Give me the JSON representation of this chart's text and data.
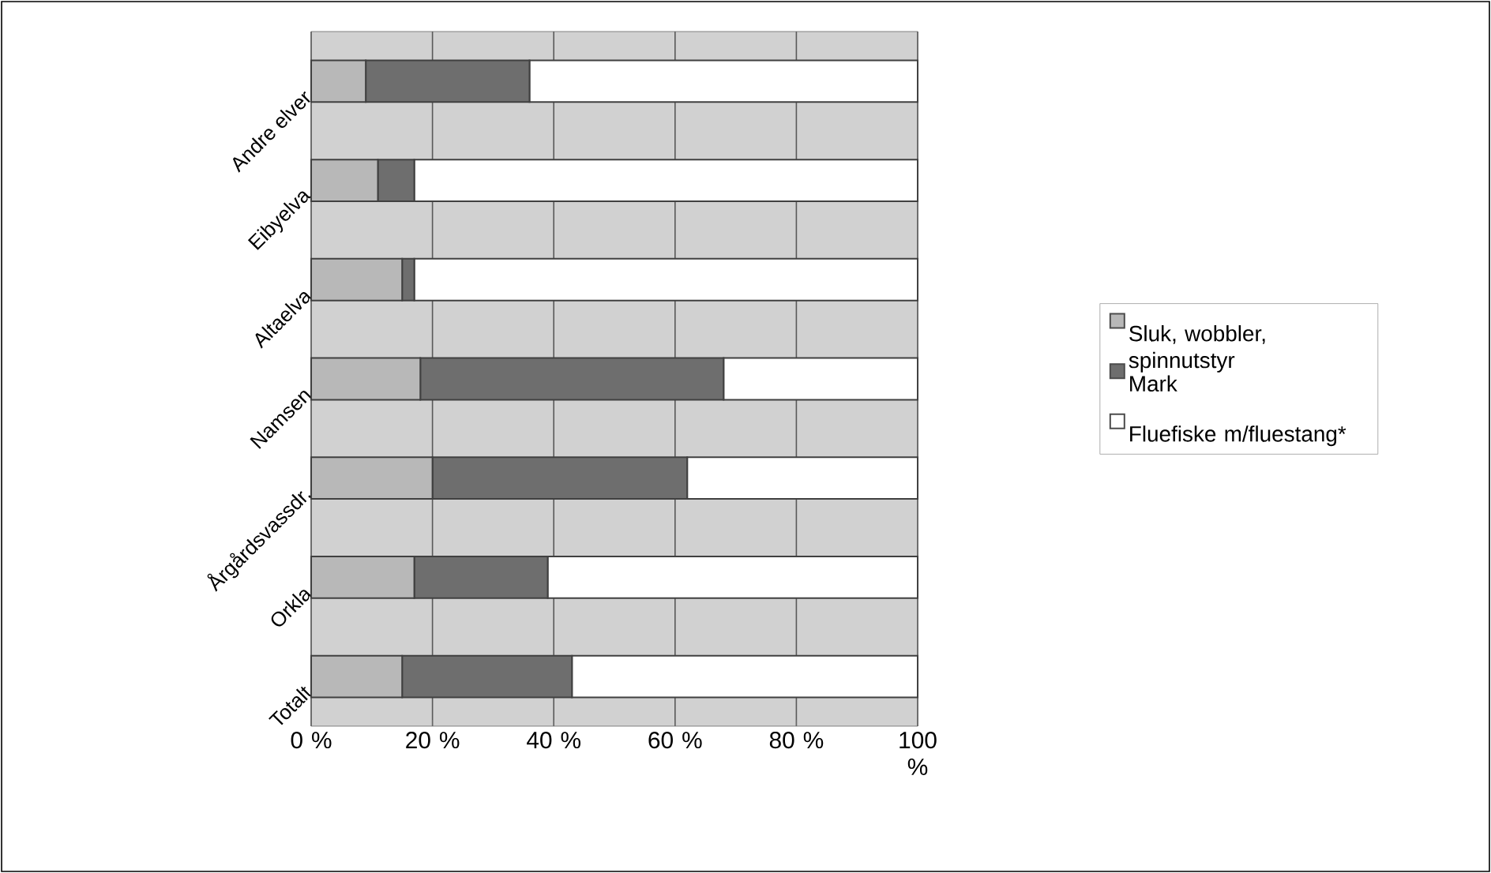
{
  "chart_data": {
    "type": "bar",
    "orientation": "horizontal",
    "stacked": true,
    "categories": [
      "Andre elver",
      "Eibyelva",
      "Altaelva",
      "Namsen",
      "Årgårdsvassdr.",
      "Orkla",
      "Totalt"
    ],
    "series": [
      {
        "name": "Sluk, wobbler, spinnutstyr",
        "color": "#b8b8b8",
        "values": [
          9,
          11,
          15,
          18,
          20,
          17,
          15
        ]
      },
      {
        "name": "Mark",
        "color": "#6e6e6e",
        "values": [
          27,
          6,
          2,
          50,
          42,
          22,
          28
        ]
      },
      {
        "name": "Fluefiske m/fluestang*",
        "color": "#ffffff",
        "values": [
          64,
          83,
          83,
          32,
          38,
          61,
          57
        ]
      }
    ],
    "xlim": [
      0,
      100
    ],
    "xticks": [
      {
        "value": 0,
        "label": "0 %"
      },
      {
        "value": 20,
        "label": "20 %"
      },
      {
        "value": 40,
        "label": "40 %"
      },
      {
        "value": 60,
        "label": "60 %"
      },
      {
        "value": 80,
        "label": "80 %"
      },
      {
        "value": 100,
        "label": "100 %"
      }
    ],
    "grid": "x",
    "legend": "right"
  }
}
